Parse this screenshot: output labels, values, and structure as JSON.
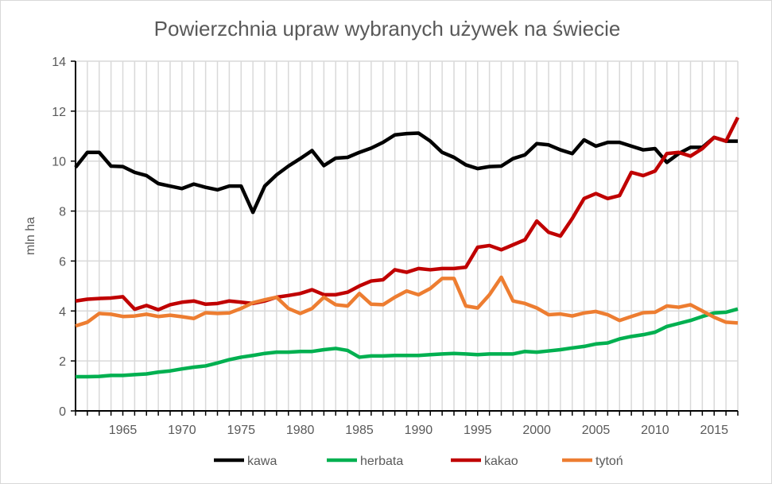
{
  "chart_data": {
    "type": "line",
    "title": "Powierzchnia upraw wybranych używek na świecie",
    "xlabel": "",
    "ylabel": "mln ha",
    "ylim": [
      0,
      14
    ],
    "yticks": [
      0,
      2,
      4,
      6,
      8,
      10,
      12,
      14
    ],
    "xlim": [
      1961,
      2017
    ],
    "xtick_labels": [
      "1965",
      "1970",
      "1975",
      "1980",
      "1985",
      "1990",
      "1995",
      "2000",
      "2005",
      "2010",
      "2015"
    ],
    "grid": "vertical-yearly and horizontal-major",
    "legend_position": "bottom",
    "x": [
      1961,
      1962,
      1963,
      1964,
      1965,
      1966,
      1967,
      1968,
      1969,
      1970,
      1971,
      1972,
      1973,
      1974,
      1975,
      1976,
      1977,
      1978,
      1979,
      1980,
      1981,
      1982,
      1983,
      1984,
      1985,
      1986,
      1987,
      1988,
      1989,
      1990,
      1991,
      1992,
      1993,
      1994,
      1995,
      1996,
      1997,
      1998,
      1999,
      2000,
      2001,
      2002,
      2003,
      2004,
      2005,
      2006,
      2007,
      2008,
      2009,
      2010,
      2011,
      2012,
      2013,
      2014,
      2015,
      2016,
      2017
    ],
    "series": [
      {
        "name": "kawa",
        "color": "#000000",
        "values": [
          9.75,
          10.35,
          10.35,
          9.8,
          9.78,
          9.55,
          9.42,
          9.1,
          9.0,
          8.9,
          9.08,
          8.95,
          8.85,
          9.0,
          9.0,
          7.95,
          9.0,
          9.45,
          9.8,
          10.1,
          10.42,
          9.82,
          10.12,
          10.15,
          10.35,
          10.52,
          10.75,
          11.05,
          11.1,
          11.12,
          10.8,
          10.35,
          10.15,
          9.85,
          9.7,
          9.78,
          9.8,
          10.1,
          10.25,
          10.7,
          10.65,
          10.45,
          10.3,
          10.85,
          10.6,
          10.75,
          10.75,
          10.6,
          10.45,
          10.5,
          9.95,
          10.3,
          10.55,
          10.55,
          10.95,
          10.8,
          10.8
        ]
      },
      {
        "name": "herbata",
        "color": "#00b050",
        "values": [
          1.37,
          1.37,
          1.38,
          1.42,
          1.42,
          1.45,
          1.48,
          1.55,
          1.6,
          1.68,
          1.75,
          1.8,
          1.92,
          2.05,
          2.15,
          2.22,
          2.3,
          2.35,
          2.35,
          2.38,
          2.38,
          2.45,
          2.5,
          2.42,
          2.15,
          2.2,
          2.2,
          2.22,
          2.22,
          2.22,
          2.25,
          2.28,
          2.3,
          2.28,
          2.25,
          2.28,
          2.28,
          2.28,
          2.38,
          2.35,
          2.4,
          2.45,
          2.52,
          2.58,
          2.68,
          2.72,
          2.88,
          2.98,
          3.05,
          3.15,
          3.38,
          3.5,
          3.62,
          3.78,
          3.92,
          3.95,
          4.08
        ]
      },
      {
        "name": "kakao",
        "color": "#c00000",
        "values": [
          4.4,
          4.47,
          4.5,
          4.52,
          4.57,
          4.07,
          4.22,
          4.05,
          4.25,
          4.35,
          4.4,
          4.27,
          4.3,
          4.4,
          4.35,
          4.3,
          4.4,
          4.55,
          4.62,
          4.7,
          4.85,
          4.65,
          4.65,
          4.75,
          5.0,
          5.2,
          5.25,
          5.65,
          5.55,
          5.7,
          5.65,
          5.7,
          5.7,
          5.75,
          6.55,
          6.62,
          6.45,
          6.65,
          6.85,
          7.6,
          7.15,
          7.0,
          7.7,
          8.5,
          8.7,
          8.5,
          8.62,
          9.55,
          9.42,
          9.6,
          10.3,
          10.35,
          10.2,
          10.5,
          10.95,
          10.8,
          11.75
        ]
      },
      {
        "name": "tytoń",
        "color": "#ed7d31",
        "values": [
          3.4,
          3.55,
          3.9,
          3.87,
          3.78,
          3.8,
          3.87,
          3.78,
          3.83,
          3.77,
          3.7,
          3.93,
          3.9,
          3.92,
          4.1,
          4.33,
          4.45,
          4.55,
          4.1,
          3.9,
          4.1,
          4.55,
          4.25,
          4.2,
          4.7,
          4.27,
          4.25,
          4.55,
          4.8,
          4.65,
          4.9,
          5.3,
          5.3,
          4.2,
          4.12,
          4.65,
          5.35,
          4.4,
          4.3,
          4.12,
          3.85,
          3.88,
          3.8,
          3.92,
          3.98,
          3.85,
          3.62,
          3.78,
          3.93,
          3.95,
          4.2,
          4.15,
          4.25,
          4.0,
          3.75,
          3.55,
          3.52
        ]
      }
    ]
  }
}
